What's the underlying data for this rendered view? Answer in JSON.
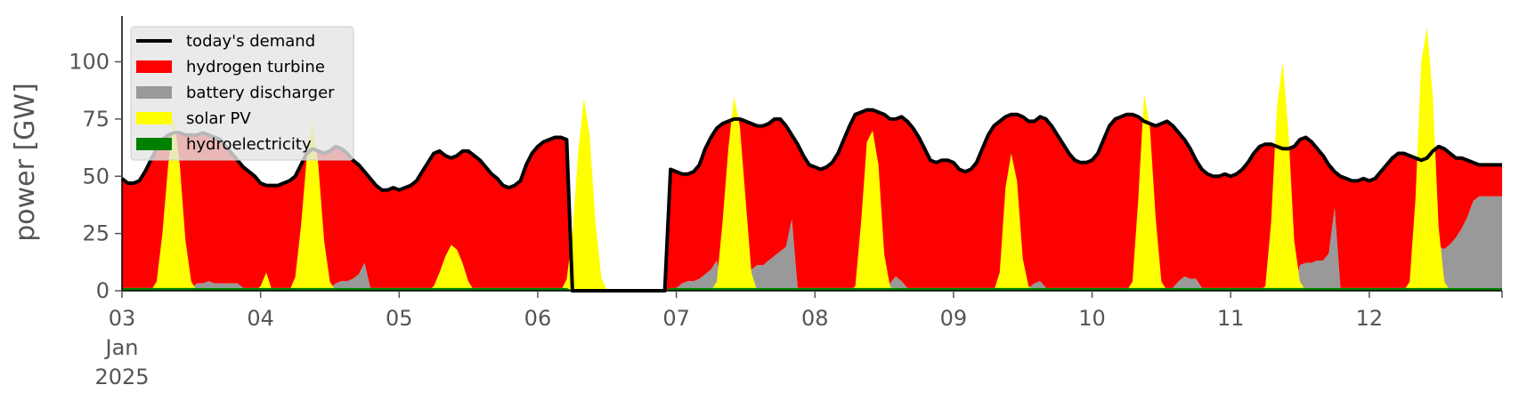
{
  "chart_data": {
    "type": "area",
    "ylabel": "power [GW]",
    "xlabel": "",
    "ylim": [
      0,
      120
    ],
    "xlim": [
      "2025-01-03T00:00",
      "2025-01-12T23:00"
    ],
    "y_ticks": [
      "0",
      "25",
      "50",
      "75",
      "100"
    ],
    "x_ticks": [
      "03",
      "04",
      "05",
      "06",
      "07",
      "08",
      "09",
      "10",
      "11",
      "12"
    ],
    "x_tick_sublabels": [
      "Jan",
      "2025"
    ],
    "grid": false,
    "legend_position": "upper-left",
    "legend": [
      {
        "name": "today's demand",
        "color": "#000000",
        "kind": "line"
      },
      {
        "name": "hydrogen turbine",
        "color": "#ff0000",
        "kind": "patch"
      },
      {
        "name": "battery discharger",
        "color": "#999999",
        "kind": "patch"
      },
      {
        "name": "solar PV",
        "color": "#ffff00",
        "kind": "patch"
      },
      {
        "name": "hydroelectricity",
        "color": "#008000",
        "kind": "patch"
      }
    ],
    "days": [
      {
        "date": "2025-01-03",
        "demand": [
          49,
          47,
          47,
          48,
          52,
          57,
          62,
          66,
          68,
          69,
          69,
          68,
          68,
          68,
          69,
          68,
          67,
          66,
          63,
          60,
          57,
          54,
          52,
          50
        ],
        "solar": [
          0,
          0,
          0,
          0,
          0,
          0,
          4,
          25,
          55,
          76,
          55,
          22,
          4,
          0,
          0,
          0,
          0,
          0,
          0,
          0,
          0,
          0,
          0,
          0
        ],
        "battery": [
          0,
          0,
          0,
          0,
          0,
          0,
          0,
          0,
          0,
          0,
          0,
          0,
          0,
          2,
          2,
          3,
          2,
          2,
          2,
          2,
          2,
          0,
          0,
          0
        ]
      },
      {
        "date": "2025-01-04",
        "demand": [
          47,
          46,
          46,
          46,
          47,
          48,
          50,
          55,
          60,
          62,
          61,
          60,
          61,
          63,
          62,
          60,
          57,
          55,
          52,
          49,
          46,
          44,
          44,
          45
        ],
        "solar": [
          2,
          8,
          0,
          0,
          0,
          0,
          6,
          28,
          58,
          74,
          55,
          22,
          4,
          0,
          0,
          0,
          0,
          0,
          0,
          0,
          0,
          0,
          0,
          0
        ],
        "battery": [
          0,
          0,
          0,
          0,
          0,
          0,
          0,
          0,
          0,
          0,
          0,
          0,
          0,
          2,
          3,
          3,
          4,
          6,
          11,
          0,
          0,
          0,
          0,
          0
        ]
      },
      {
        "date": "2025-01-05",
        "demand": [
          44,
          45,
          46,
          48,
          52,
          56,
          60,
          61,
          59,
          58,
          59,
          61,
          61,
          59,
          57,
          54,
          51,
          49,
          46,
          45,
          46,
          48,
          55,
          60
        ],
        "solar": [
          0,
          0,
          0,
          0,
          0,
          0,
          2,
          8,
          15,
          20,
          18,
          12,
          4,
          0,
          0,
          0,
          0,
          0,
          0,
          0,
          0,
          0,
          0,
          0
        ],
        "battery": [
          0,
          0,
          0,
          0,
          0,
          0,
          0,
          0,
          0,
          0,
          0,
          0,
          0,
          0,
          0,
          0,
          0,
          0,
          0,
          0,
          0,
          0,
          0,
          0
        ]
      },
      {
        "date": "2025-01-06",
        "demand": [
          63,
          65,
          66,
          67,
          67,
          66,
          0,
          0,
          0,
          0,
          0,
          0,
          0,
          0,
          0,
          0,
          0,
          0,
          0,
          0,
          0,
          0,
          0,
          53
        ],
        "solar": [
          0,
          0,
          0,
          0,
          0,
          5,
          25,
          60,
          84,
          68,
          30,
          6,
          0,
          0,
          0,
          0,
          0,
          0,
          0,
          0,
          0,
          0,
          0,
          0
        ],
        "battery": [
          0,
          0,
          0,
          0,
          0,
          0,
          0,
          0,
          0,
          0,
          0,
          0,
          0,
          0,
          0,
          0,
          0,
          0,
          0,
          0,
          0,
          0,
          0,
          0
        ]
      },
      {
        "date": "2025-01-07",
        "demand": [
          52,
          51,
          51,
          52,
          55,
          62,
          67,
          71,
          73,
          74,
          75,
          75,
          74,
          73,
          72,
          72,
          73,
          75,
          75,
          72,
          68,
          64,
          59,
          55
        ],
        "solar": [
          0,
          0,
          0,
          0,
          0,
          0,
          0,
          4,
          30,
          62,
          85,
          72,
          40,
          8,
          0,
          0,
          0,
          0,
          0,
          0,
          0,
          0,
          0,
          0
        ],
        "battery": [
          0,
          2,
          3,
          3,
          4,
          6,
          8,
          12,
          0,
          0,
          0,
          0,
          0,
          8,
          10,
          10,
          12,
          14,
          16,
          18,
          30,
          0,
          0,
          0
        ]
      },
      {
        "date": "2025-01-08",
        "demand": [
          54,
          53,
          54,
          56,
          60,
          66,
          72,
          77,
          78,
          79,
          79,
          78,
          77,
          75,
          75,
          76,
          74,
          71,
          67,
          62,
          57,
          56,
          57,
          57
        ],
        "solar": [
          0,
          0,
          0,
          0,
          0,
          0,
          0,
          2,
          30,
          65,
          70,
          55,
          16,
          2,
          0,
          0,
          0,
          0,
          0,
          0,
          0,
          0,
          0,
          0
        ],
        "battery": [
          0,
          0,
          0,
          0,
          0,
          0,
          0,
          0,
          0,
          0,
          0,
          0,
          0,
          2,
          5,
          3,
          0,
          0,
          0,
          0,
          0,
          0,
          0,
          0
        ]
      },
      {
        "date": "2025-01-09",
        "demand": [
          56,
          53,
          52,
          53,
          56,
          62,
          68,
          72,
          74,
          76,
          77,
          77,
          76,
          74,
          74,
          76,
          75,
          72,
          68,
          64,
          60,
          57,
          56,
          56
        ],
        "solar": [
          0,
          0,
          0,
          0,
          0,
          0,
          0,
          0,
          8,
          45,
          60,
          48,
          14,
          2,
          0,
          0,
          0,
          0,
          0,
          0,
          0,
          0,
          0,
          0
        ],
        "battery": [
          0,
          0,
          0,
          0,
          0,
          0,
          0,
          0,
          0,
          0,
          0,
          0,
          0,
          0,
          2,
          3,
          0,
          0,
          0,
          0,
          0,
          0,
          0,
          0
        ]
      },
      {
        "date": "2025-01-10",
        "demand": [
          57,
          60,
          66,
          72,
          75,
          76,
          77,
          77,
          76,
          74,
          73,
          72,
          73,
          74,
          72,
          69,
          66,
          62,
          57,
          53,
          51,
          50,
          50,
          51
        ],
        "solar": [
          0,
          0,
          0,
          0,
          0,
          0,
          0,
          4,
          40,
          86,
          72,
          32,
          4,
          0,
          0,
          0,
          0,
          0,
          0,
          0,
          0,
          0,
          0,
          0
        ],
        "battery": [
          0,
          0,
          0,
          0,
          0,
          0,
          0,
          0,
          0,
          0,
          0,
          0,
          0,
          0,
          0,
          3,
          5,
          4,
          4,
          0,
          0,
          0,
          0,
          0
        ]
      },
      {
        "date": "2025-01-11",
        "demand": [
          50,
          51,
          53,
          56,
          60,
          63,
          64,
          64,
          63,
          62,
          62,
          63,
          66,
          67,
          65,
          62,
          59,
          55,
          52,
          50,
          49,
          48,
          48,
          49
        ],
        "solar": [
          0,
          0,
          0,
          0,
          0,
          0,
          2,
          30,
          80,
          100,
          70,
          22,
          4,
          0,
          0,
          0,
          0,
          0,
          0,
          0,
          0,
          0,
          0,
          0
        ],
        "battery": [
          0,
          0,
          0,
          0,
          0,
          0,
          0,
          0,
          0,
          0,
          0,
          0,
          10,
          11,
          11,
          12,
          12,
          15,
          35,
          0,
          0,
          0,
          0,
          0
        ]
      },
      {
        "date": "2025-01-12",
        "demand": [
          48,
          49,
          52,
          55,
          58,
          60,
          60,
          59,
          58,
          57,
          58,
          61,
          63,
          62,
          60,
          58,
          58,
          57,
          56,
          55,
          55,
          55,
          55,
          55
        ],
        "solar": [
          0,
          0,
          0,
          0,
          0,
          0,
          0,
          4,
          40,
          100,
          115,
          85,
          28,
          4,
          0,
          0,
          0,
          0,
          0,
          0,
          0,
          0,
          0,
          0
        ],
        "battery": [
          0,
          0,
          0,
          0,
          0,
          0,
          0,
          0,
          0,
          0,
          0,
          0,
          18,
          17,
          19,
          22,
          26,
          31,
          38,
          40,
          40,
          40,
          40,
          40
        ]
      }
    ],
    "hydro": 1.2
  }
}
